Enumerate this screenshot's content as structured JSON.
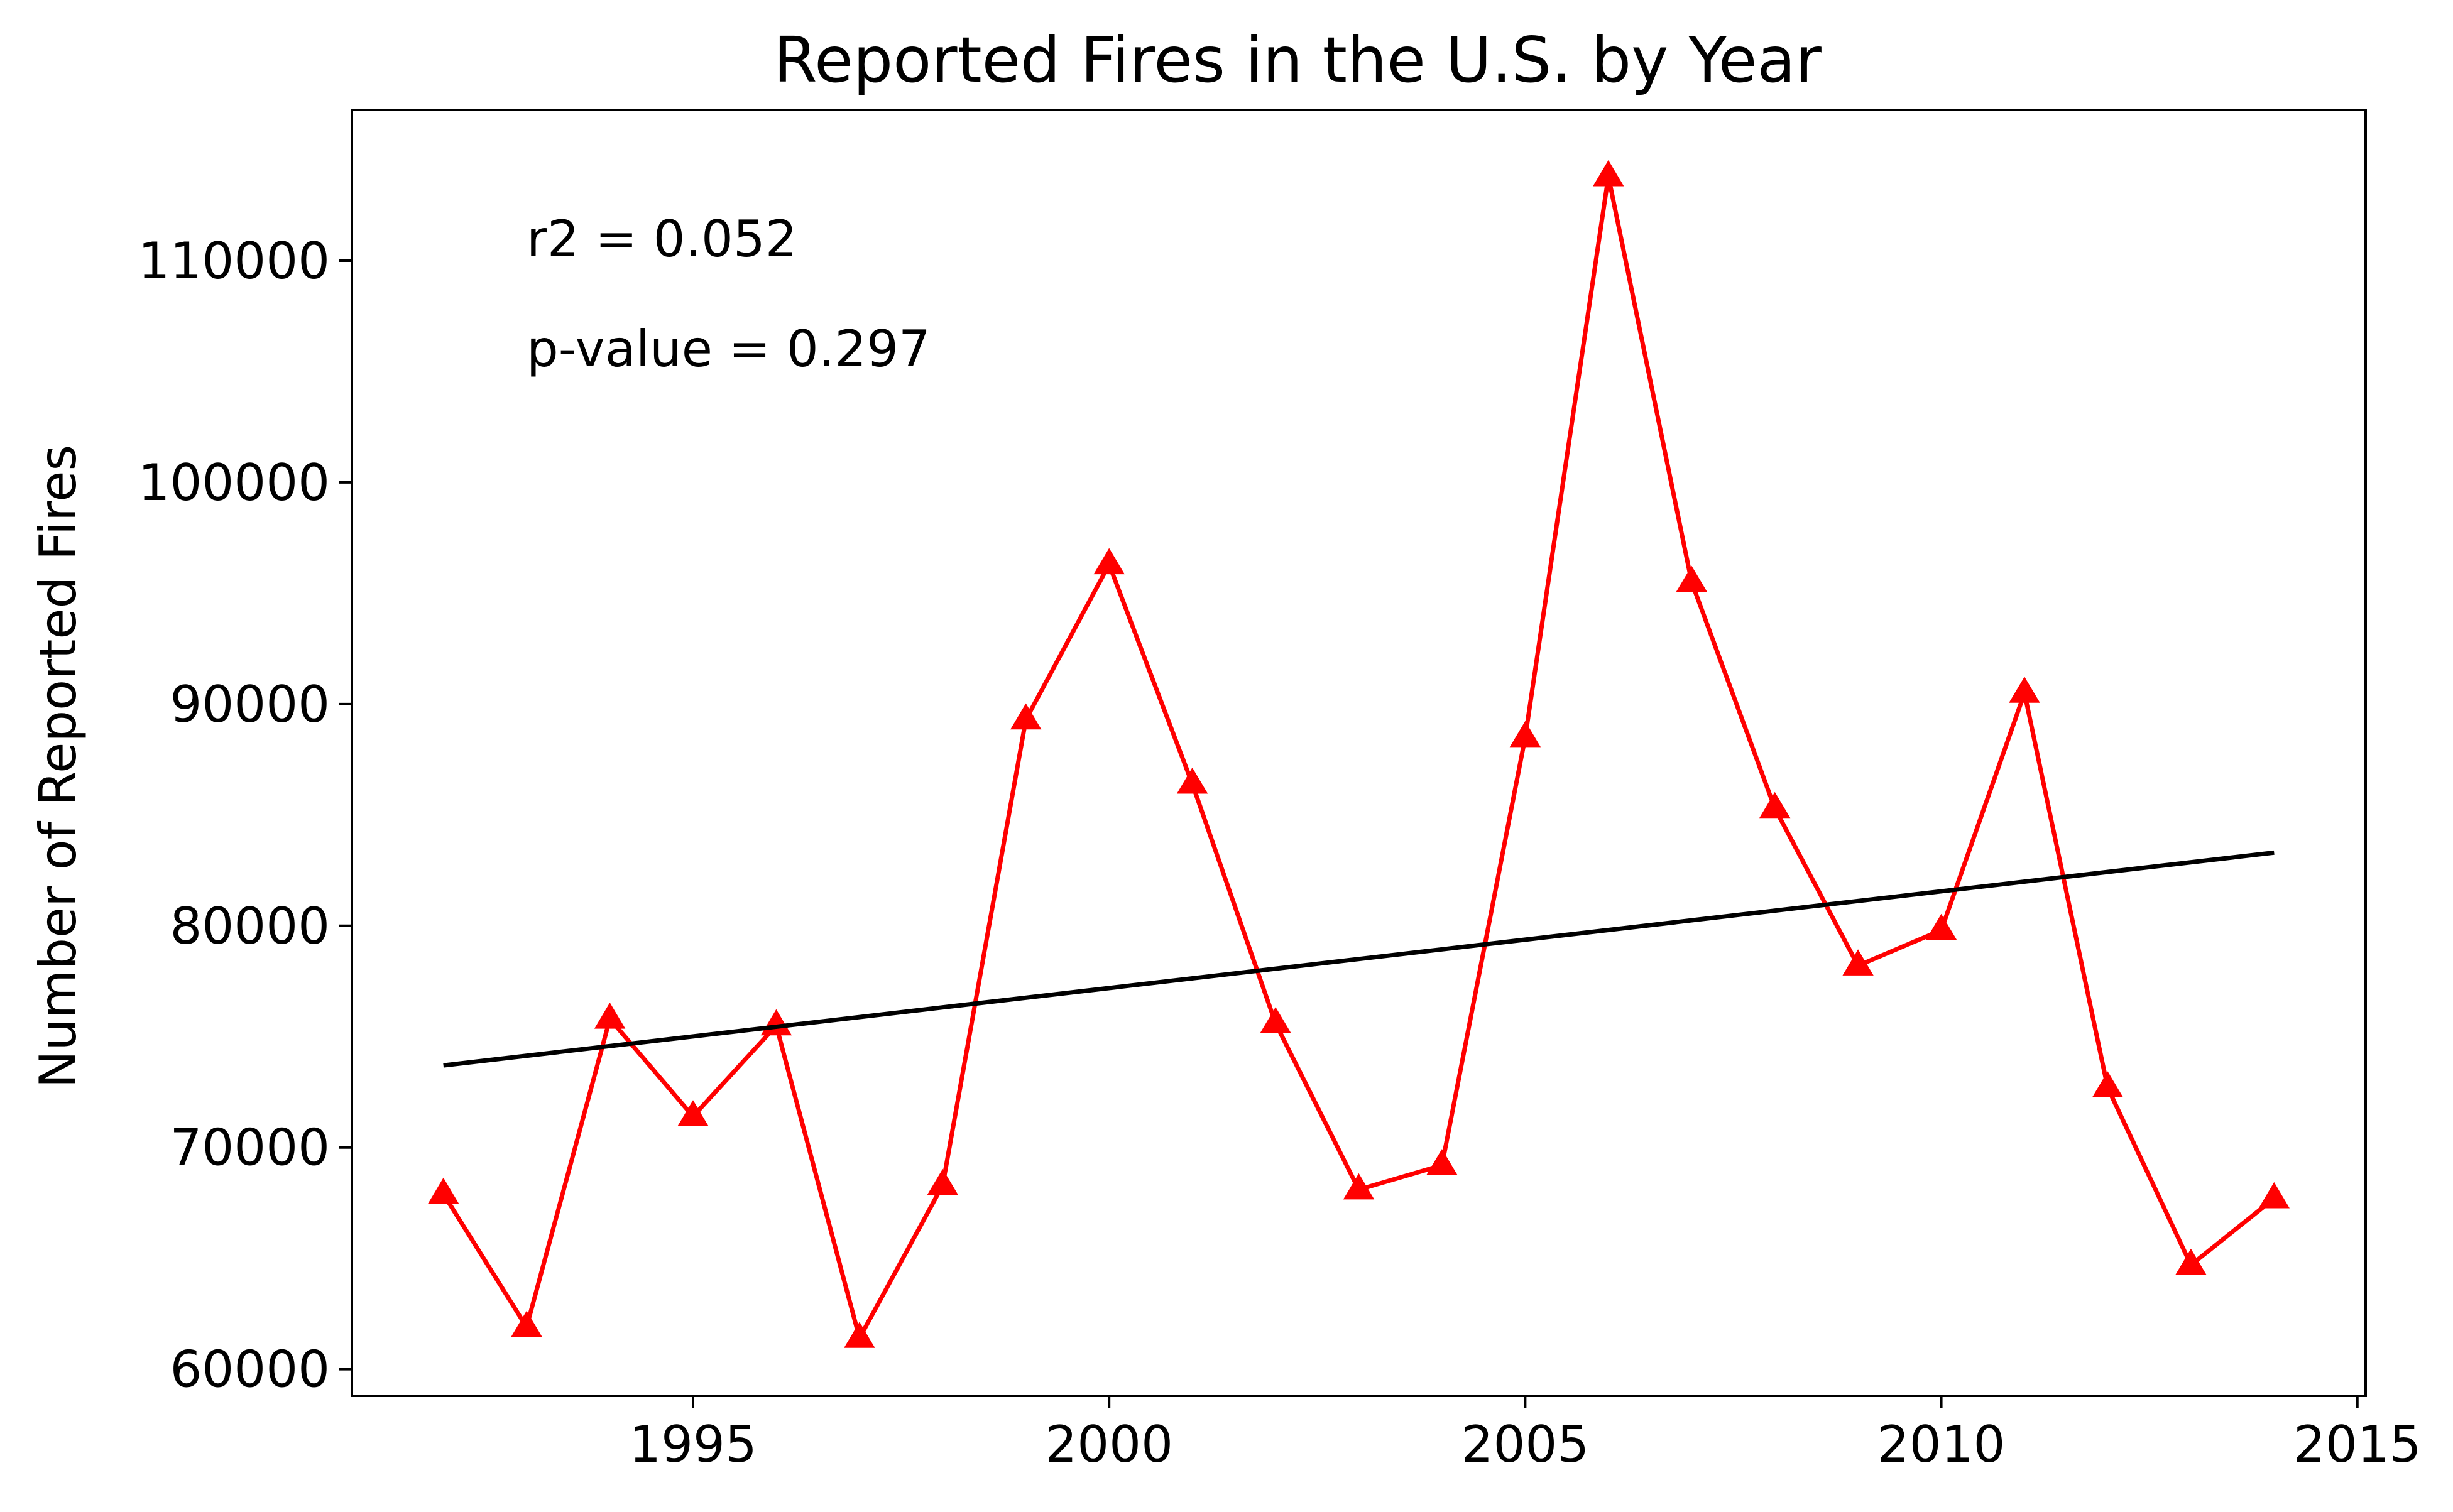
{
  "chart_data": {
    "type": "line",
    "title": "Reported Fires in the U.S. by Year",
    "xlabel": "",
    "ylabel": "Number of Reported Fires",
    "xlim": [
      1990.9,
      2015.1
    ],
    "ylim": [
      58800,
      116800
    ],
    "x_ticks": [
      1995,
      2000,
      2005,
      2010,
      2015
    ],
    "y_ticks": [
      60000,
      70000,
      80000,
      90000,
      100000,
      110000
    ],
    "grid": false,
    "series": [
      {
        "color": "#ff0000",
        "marker": "triangle",
        "x": [
          1992,
          1993,
          1994,
          1995,
          1996,
          1997,
          1998,
          1999,
          2000,
          2001,
          2002,
          2003,
          2004,
          2005,
          2006,
          2007,
          2008,
          2009,
          2010,
          2011,
          2012,
          2013,
          2014
        ],
        "y": [
          67900,
          61900,
          75800,
          71400,
          75500,
          61400,
          68300,
          89300,
          96300,
          86400,
          75600,
          68100,
          69200,
          88500,
          113800,
          95500,
          85300,
          78200,
          79800,
          90500,
          72700,
          64700,
          67700
        ]
      },
      {
        "color": "#000000",
        "marker": "none",
        "x": [
          1992,
          2014
        ],
        "y": [
          73700,
          83300
        ]
      }
    ],
    "annotations": [
      {
        "text": "r2 = 0.052"
      },
      {
        "text": "p-value = 0.297"
      }
    ]
  }
}
